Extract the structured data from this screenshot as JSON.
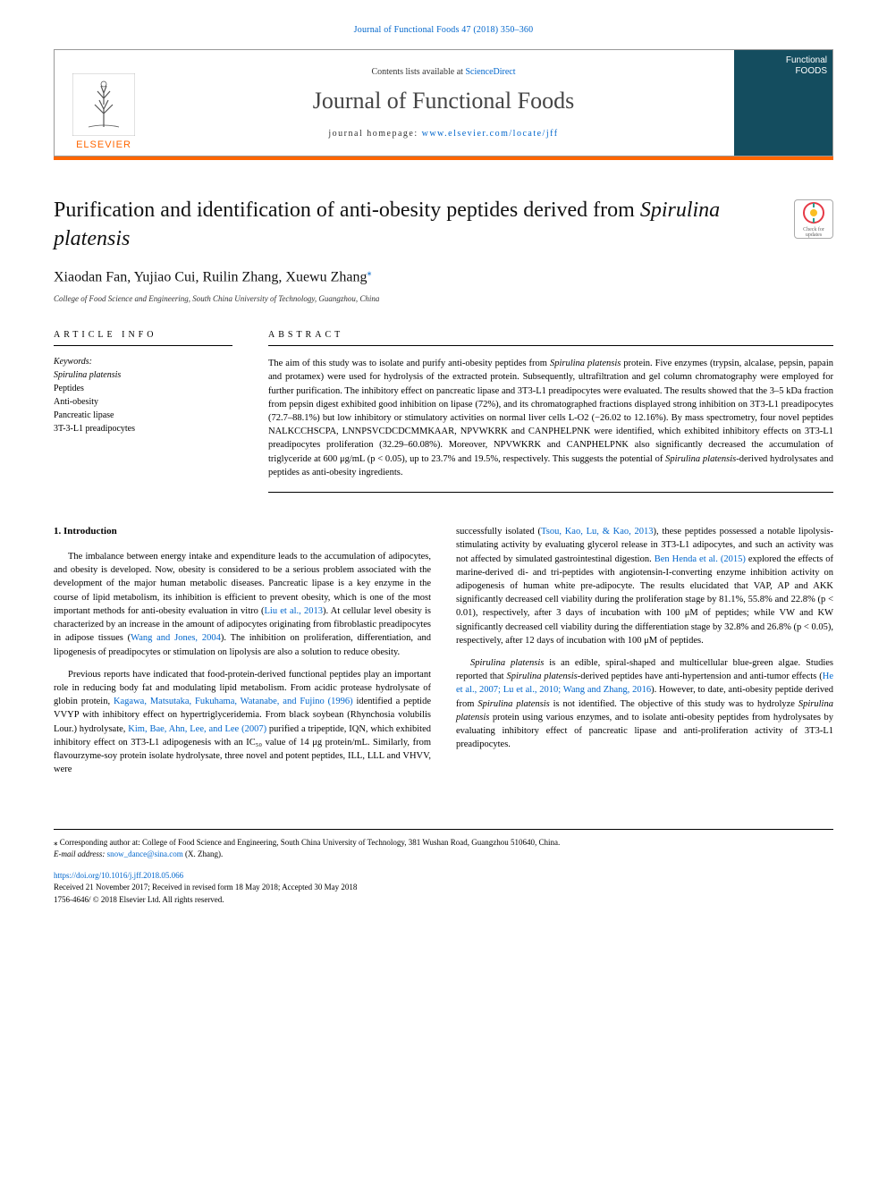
{
  "header": {
    "journal_ref": "Journal of Functional Foods 47 (2018) 350–360",
    "contents_prefix": "Contents lists available at ",
    "contents_link": "ScienceDirect",
    "journal_name": "Journal of Functional Foods",
    "homepage_prefix": "journal homepage: ",
    "homepage_link": "www.elsevier.com/locate/jff",
    "publisher": "ELSEVIER",
    "cover_line1": "Functional",
    "cover_line2": "FOODS",
    "check_updates": "Check for updates"
  },
  "article": {
    "title_pre": "Purification and identification of anti-obesity peptides derived from ",
    "title_italic": "Spirulina platensis",
    "authors": "Xiaodan Fan, Yujiao Cui, Ruilin Zhang, Xuewu Zhang",
    "corr_marker": "⁎",
    "affiliation": "College of Food Science and Engineering, South China University of Technology, Guangzhou, China"
  },
  "info": {
    "article_info_heading": "ARTICLE INFO",
    "keywords_label": "Keywords:",
    "keywords": [
      {
        "text": "Spirulina platensis",
        "italic": true
      },
      {
        "text": "Peptides",
        "italic": false
      },
      {
        "text": "Anti-obesity",
        "italic": false
      },
      {
        "text": "Pancreatic lipase",
        "italic": false
      },
      {
        "text": "3T-3-L1 preadipocytes",
        "italic": false
      }
    ]
  },
  "abstract": {
    "heading": "ABSTRACT",
    "text_pre": "The aim of this study was to isolate and purify anti-obesity peptides from ",
    "sp": "Spirulina platensis",
    "text_mid": " protein. Five enzymes (trypsin, alcalase, pepsin, papain and protamex) were used for hydrolysis of the extracted protein. Subsequently, ultrafiltration and gel column chromatography were employed for further purification. The inhibitory effect on pancreatic lipase and 3T3-L1 preadipocytes were evaluated. The results showed that the 3–5 kDa fraction from pepsin digest exhibited good inhibition on lipase (72%), and its chromatographed fractions displayed strong inhibition on 3T3-L1 preadipocytes (72.7–88.1%) but low inhibitory or stimulatory activities on normal liver cells L-O2 (−26.02 to 12.16%). By mass spectrometry, four novel peptides NALKCCHSCPA, LNNPSVCDCDCMMKAAR, NPVWKRK and CANPHELPNK were identified, which exhibited inhibitory effects on 3T3-L1 preadipocytes proliferation (32.29–60.08%). Moreover, NPVWKRK and CANPHELPNK also significantly decreased the accumulation of triglyceride at 600 μg/mL (p < 0.05), up to 23.7% and 19.5%, respectively. This suggests the potential of ",
    "text_post": "-derived hydrolysates and peptides as anti-obesity ingredients."
  },
  "body": {
    "intro_heading": "1. Introduction",
    "left_p1_a": "The imbalance between energy intake and expenditure leads to the accumulation of adipocytes, and obesity is developed. Now, obesity is considered to be a serious problem associated with the development of the major human metabolic diseases. Pancreatic lipase is a key enzyme in the course of lipid metabolism, its inhibition is efficient to prevent obesity, which is one of the most important methods for anti-obesity evaluation in vitro (",
    "left_p1_link1": "Liu et al., 2013",
    "left_p1_b": "). At cellular level obesity is characterized by an increase in the amount of adipocytes originating from fibroblastic preadipocytes in adipose tissues (",
    "left_p1_link2": "Wang and Jones, 2004",
    "left_p1_c": "). The inhibition on proliferation, differentiation, and lipogenesis of preadipocytes or stimulation on lipolysis are also a solution to reduce obesity.",
    "left_p2_a": "Previous reports have indicated that food-protein-derived functional peptides play an important role in reducing body fat and modulating lipid metabolism. From acidic protease hydrolysate of globin protein, ",
    "left_p2_link1": "Kagawa, Matsutaka, Fukuhama, Watanabe, and Fujino (1996)",
    "left_p2_b": " identified a peptide VVYP with inhibitory effect on hypertriglyceridemia. From black soybean (Rhynchosia volubilis Lour.) hydrolysate, ",
    "left_p2_link2": "Kim, Bae, Ahn, Lee, and Lee (2007)",
    "left_p2_c": " purified a tripeptide, IQN, which exhibited inhibitory effect on 3T3-L1 adipogenesis with an IC₅₀ value of 14 μg protein/mL. Similarly, from flavourzyme-soy protein isolate hydrolysate, three novel and potent peptides, ILL, LLL and VHVV, were",
    "right_p1_a": "successfully isolated (",
    "right_p1_link1": "Tsou, Kao, Lu, & Kao, 2013",
    "right_p1_b": "), these peptides possessed a notable lipolysis-stimulating activity by evaluating glycerol release in 3T3-L1 adipocytes, and such an activity was not affected by simulated gastrointestinal digestion. ",
    "right_p1_link2": "Ben Henda et al. (2015)",
    "right_p1_c": " explored the effects of marine-derived di- and tri-peptides with angiotensin-I-converting enzyme inhibition activity on adipogenesis of human white pre-adipocyte. The results elucidated that VAP, AP and AKK significantly decreased cell viability during the proliferation stage by 81.1%, 55.8% and 22.8% (p < 0.01), respectively, after 3 days of incubation with 100 μM of peptides; while VW and KW significantly decreased cell viability during the differentiation stage by 32.8% and 26.8% (p < 0.05), respectively, after 12 days of incubation with 100 μM of peptides.",
    "right_p2_a_italic": "Spirulina platensis",
    "right_p2_a": " is an edible, spiral-shaped and multicellular blue-green algae. Studies reported that ",
    "right_p2_b_italic": "Spirulina platensis",
    "right_p2_b": "-derived peptides have anti-hypertension and anti-tumor effects (",
    "right_p2_link1": "He et al., 2007; Lu et al., 2010; Wang and Zhang, 2016",
    "right_p2_c": "). However, to date, anti-obesity peptide derived from ",
    "right_p2_d_italic": "Spirulina platensis",
    "right_p2_d": " is not identified. The objective of this study was to hydrolyze ",
    "right_p2_e_italic": "Spirulina platensis",
    "right_p2_e": " protein using various enzymes, and to isolate anti-obesity peptides from hydrolysates by evaluating inhibitory effect of pancreatic lipase and anti-proliferation activity of 3T3-L1 preadipocytes."
  },
  "footer": {
    "corr_text": "⁎ Corresponding author at: College of Food Science and Engineering, South China University of Technology, 381 Wushan Road, Guangzhou 510640, China.",
    "email_label": "E-mail address: ",
    "email": "snow_dance@sina.com",
    "email_suffix": " (X. Zhang).",
    "doi": "https://doi.org/10.1016/j.jff.2018.05.066",
    "received": "Received 21 November 2017; Received in revised form 18 May 2018; Accepted 30 May 2018",
    "copyright": "1756-4646/ © 2018 Elsevier Ltd. All rights reserved."
  },
  "colors": {
    "link": "#0066cc",
    "accent": "#ff6600",
    "cover_bg": "#144d5f",
    "text": "#000000"
  }
}
